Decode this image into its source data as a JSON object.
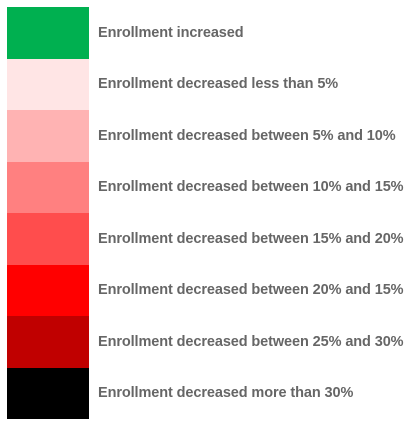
{
  "legend": {
    "items": [
      {
        "label": "Enrollment increased",
        "color": "#00b050"
      },
      {
        "label": "Enrollment decreased less than 5%",
        "color": "#ffe5e5"
      },
      {
        "label": "Enrollment decreased between 5% and 10%",
        "color": "#ffb3b3"
      },
      {
        "label": "Enrollment decreased between 10% and 15%",
        "color": "#ff8080"
      },
      {
        "label": "Enrollment decreased between 15% and 20%",
        "color": "#ff4d4d"
      },
      {
        "label": "Enrollment decreased between 20% and 15%",
        "color": "#ff0000"
      },
      {
        "label": "Enrollment decreased between 25% and 30%",
        "color": "#c00000"
      },
      {
        "label": "Enrollment decreased more than 30%",
        "color": "#000000"
      }
    ]
  }
}
